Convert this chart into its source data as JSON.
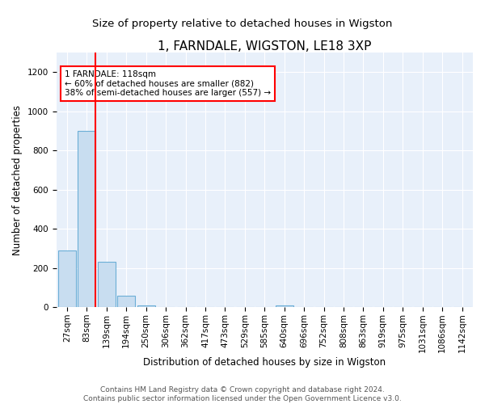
{
  "title": "1, FARNDALE, WIGSTON, LE18 3XP",
  "subtitle": "Size of property relative to detached houses in Wigston",
  "xlabel": "Distribution of detached houses by size in Wigston",
  "ylabel": "Number of detached properties",
  "bar_labels": [
    "27sqm",
    "83sqm",
    "139sqm",
    "194sqm",
    "250sqm",
    "306sqm",
    "362sqm",
    "417sqm",
    "473sqm",
    "529sqm",
    "585sqm",
    "640sqm",
    "696sqm",
    "752sqm",
    "808sqm",
    "863sqm",
    "919sqm",
    "975sqm",
    "1031sqm",
    "1086sqm",
    "1142sqm"
  ],
  "bar_values": [
    290,
    900,
    230,
    60,
    10,
    0,
    0,
    0,
    0,
    0,
    0,
    10,
    0,
    0,
    0,
    0,
    0,
    0,
    0,
    0,
    0
  ],
  "bar_color": "#c8ddf0",
  "bar_edge_color": "#6baed6",
  "vline_x": 1.45,
  "vline_color": "red",
  "annotation_text": "1 FARNDALE: 118sqm\n← 60% of detached houses are smaller (882)\n38% of semi-detached houses are larger (557) →",
  "annotation_box_color": "white",
  "annotation_box_edge_color": "red",
  "ylim": [
    0,
    1300
  ],
  "yticks": [
    0,
    200,
    400,
    600,
    800,
    1000,
    1200
  ],
  "footer_line1": "Contains HM Land Registry data © Crown copyright and database right 2024.",
  "footer_line2": "Contains public sector information licensed under the Open Government Licence v3.0.",
  "bg_color": "#e8f0fa",
  "title_fontsize": 11,
  "subtitle_fontsize": 9.5,
  "axis_label_fontsize": 8.5,
  "tick_fontsize": 7.5,
  "footer_fontsize": 6.5
}
